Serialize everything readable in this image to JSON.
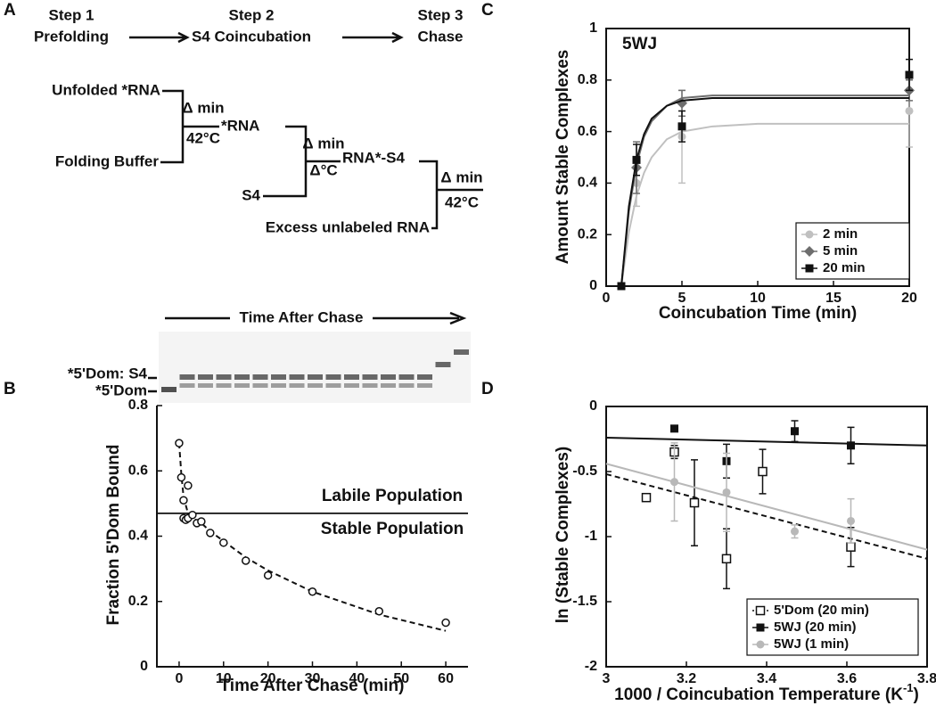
{
  "diagram": {
    "panel_label": "A",
    "step1": [
      "Step 1",
      "Prefolding"
    ],
    "step2": [
      "Step 2",
      "S4 Coincubation"
    ],
    "step3": [
      "Step 3",
      "Chase"
    ],
    "unfolded": "Unfolded *RNA",
    "buffer": "Folding Buffer",
    "cond1": [
      "Δ min",
      "42°C"
    ],
    "rna": "*RNA",
    "s4": "S4",
    "cond2": [
      "Δ min",
      "Δ°C"
    ],
    "complex": "RNA*-S4",
    "excess": "Excess unlabeled RNA",
    "cond3": [
      "Δ min",
      "42°C"
    ]
  },
  "gel": {
    "title": "Time After Chase",
    "band_upper": "*5'Dom: S4",
    "band_lower": "*5'Dom"
  },
  "chart_data": [
    {
      "type": "scatter",
      "panel_label": "B",
      "xlabel": "Time After Chase (min)",
      "ylabel": "Fraction 5'Dom Bound",
      "xlim": [
        -5,
        65
      ],
      "ylim": [
        0,
        0.8
      ],
      "xticks": [
        0,
        10,
        20,
        30,
        40,
        50,
        60
      ],
      "yticks": [
        0,
        0.2,
        0.4,
        0.6,
        0.8
      ],
      "reference_line": 0.47,
      "annotations": [
        "Labile Population",
        "Stable Population"
      ],
      "series": [
        {
          "color": "#111111",
          "marker": "open-circle",
          "x": [
            0,
            0.5,
            1,
            1,
            1.5,
            2,
            2,
            3,
            4,
            5,
            7,
            10,
            15,
            20,
            30,
            45,
            60
          ],
          "values": [
            0.685,
            0.58,
            0.51,
            0.455,
            0.45,
            0.455,
            0.555,
            0.465,
            0.44,
            0.445,
            0.41,
            0.38,
            0.325,
            0.28,
            0.23,
            0.17,
            0.135
          ],
          "fit": {
            "dash": true,
            "x": [
              0,
              0.5,
              1,
              2,
              3,
              5,
              7,
              10,
              15,
              20,
              30,
              45,
              60
            ],
            "values": [
              0.685,
              0.59,
              0.52,
              0.47,
              0.455,
              0.44,
              0.415,
              0.385,
              0.335,
              0.295,
              0.23,
              0.16,
              0.11
            ]
          }
        }
      ]
    },
    {
      "type": "scatter",
      "panel_label": "C",
      "xlabel": "Coincubation Time (min)",
      "ylabel": "Amount Stable Complexes",
      "annotations": [
        "5WJ"
      ],
      "xlim": [
        0,
        20
      ],
      "ylim": [
        0,
        1
      ],
      "xticks": [
        0,
        5,
        10,
        15,
        20
      ],
      "yticks": [
        0,
        0.2,
        0.4,
        0.6,
        0.8,
        1
      ],
      "legend": "lower right",
      "series": [
        {
          "name": "2 min",
          "color": "#c0c0c0",
          "marker": "circle",
          "x": [
            2,
            5,
            20
          ],
          "values": [
            0.4,
            0.58,
            0.68
          ],
          "errors": [
            0.09,
            0.18,
            0.14
          ],
          "fit": {
            "dash": false,
            "x": [
              1,
              1.5,
              2,
              2.5,
              3,
              4,
              5,
              7,
              10,
              15,
              20
            ],
            "values": [
              0,
              0.21,
              0.35,
              0.44,
              0.5,
              0.57,
              0.6,
              0.62,
              0.63,
              0.63,
              0.63
            ]
          }
        },
        {
          "name": "5 min",
          "color": "#6e6e6e",
          "marker": "diamond",
          "x": [
            2,
            5,
            20
          ],
          "values": [
            0.46,
            0.71,
            0.76
          ],
          "errors": [
            0.1,
            0.05,
            0.04
          ],
          "fit": {
            "dash": false,
            "x": [
              1,
              1.5,
              2,
              2.5,
              3,
              4,
              5,
              7,
              10,
              15,
              20
            ],
            "values": [
              0,
              0.29,
              0.47,
              0.58,
              0.64,
              0.7,
              0.73,
              0.74,
              0.74,
              0.74,
              0.74
            ]
          }
        },
        {
          "name": "20 min",
          "color": "#111111",
          "marker": "square",
          "x": [
            1,
            2,
            5,
            20
          ],
          "values": [
            0,
            0.49,
            0.62,
            0.82
          ],
          "errors": [
            0,
            0.06,
            0.06,
            0.06
          ],
          "fit": {
            "dash": false,
            "x": [
              1,
              1.5,
              2,
              2.5,
              3,
              4,
              5,
              7,
              10,
              15,
              20
            ],
            "values": [
              0,
              0.31,
              0.49,
              0.59,
              0.65,
              0.7,
              0.72,
              0.73,
              0.73,
              0.73,
              0.73
            ]
          }
        }
      ]
    },
    {
      "type": "scatter",
      "panel_label": "D",
      "xlabel": "1000 / Coincubation Temperature (K",
      "xlabel_sup": "-1",
      "xlabel_end": ")",
      "ylabel": "ln (Stable Complexes)",
      "xlim": [
        3,
        3.8
      ],
      "ylim": [
        -2,
        0
      ],
      "xticks": [
        3,
        3.2,
        3.4,
        3.6,
        3.8
      ],
      "yticks": [
        -2,
        -1.5,
        -1,
        -0.5,
        0
      ],
      "legend": "lower right",
      "series": [
        {
          "name": "5'Dom  (20 min)",
          "color": "#111111",
          "marker": "open-square",
          "x": [
            3.1,
            3.17,
            3.22,
            3.3,
            3.39,
            3.61
          ],
          "values": [
            -0.7,
            -0.35,
            -0.74,
            -1.17,
            -0.5,
            -1.08
          ],
          "errors": [
            0.02,
            0.05,
            0.33,
            0.23,
            0.17,
            0.15
          ],
          "fit": {
            "dash": true,
            "x": [
              3,
              3.8
            ],
            "values": [
              -0.52,
              -1.17
            ]
          }
        },
        {
          "name": "5WJ  (20 min)",
          "color": "#111111",
          "marker": "square",
          "x": [
            3.17,
            3.3,
            3.47,
            3.61
          ],
          "values": [
            -0.17,
            -0.42,
            -0.19,
            -0.3
          ],
          "errors": [
            0.02,
            0.13,
            0.08,
            0.14
          ],
          "fit": {
            "dash": false,
            "x": [
              3,
              3.8
            ],
            "values": [
              -0.24,
              -0.3
            ]
          }
        },
        {
          "name": "5WJ  (1 min)",
          "color": "#b8b8b8",
          "marker": "circle",
          "x": [
            3.17,
            3.3,
            3.47,
            3.61
          ],
          "values": [
            -0.58,
            -0.66,
            -0.96,
            -0.88
          ],
          "errors": [
            0.3,
            0.3,
            0.05,
            0.17
          ],
          "fit": {
            "dash": false,
            "x": [
              3,
              3.8
            ],
            "values": [
              -0.44,
              -1.1
            ]
          }
        }
      ]
    }
  ]
}
